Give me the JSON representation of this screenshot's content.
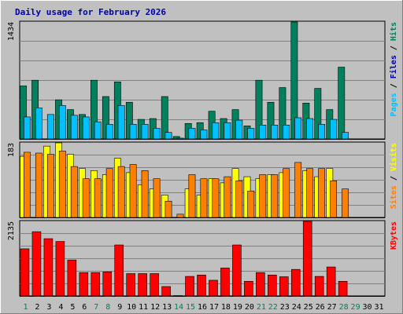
{
  "chart_data": {
    "type": "bar",
    "title": "Daily usage for February 2026",
    "colors": {
      "bg": "#c0c0c0",
      "title": "#0000aa",
      "hits": "#00805c",
      "files": "#00c0ff",
      "pages": "#00c0ff",
      "visits": "#ffff00",
      "sites": "#ff8000",
      "kbytes": "#ff0000",
      "weekend": "#00805c",
      "weekday": "#000080"
    },
    "x": [
      "1",
      "2",
      "3",
      "4",
      "5",
      "6",
      "7",
      "8",
      "9",
      "10",
      "11",
      "12",
      "13",
      "14",
      "15",
      "16",
      "17",
      "18",
      "19",
      "20",
      "21",
      "22",
      "23",
      "24",
      "25",
      "26",
      "27",
      "28",
      "29",
      "30",
      "31"
    ],
    "weekend_days": [
      "1",
      "7",
      "8",
      "14",
      "15",
      "21",
      "22",
      "28",
      "29"
    ],
    "panels": [
      {
        "ylabel_max": "1434",
        "legend": [
          {
            "text": "Hits",
            "color": "#00805c"
          },
          {
            "text": "Files",
            "color": "#0000aa"
          },
          {
            "text": "Pages",
            "color": "#00c0ff"
          }
        ],
        "ylim": [
          0,
          1434
        ],
        "series": [
          {
            "name": "Hits",
            "color": "#00805c",
            "values": [
              650,
              720,
              0,
              480,
              360,
              300,
              720,
              520,
              700,
              450,
              240,
              250,
              520,
              30,
              190,
              200,
              340,
              250,
              360,
              160,
              720,
              450,
              630,
              1434,
              440,
              620,
              360,
              880,
              0,
              0,
              0
            ]
          },
          {
            "name": "Files",
            "color": "#00c0ff",
            "values": [
              270,
              380,
              300,
              410,
              290,
              270,
              210,
              180,
              410,
              180,
              180,
              130,
              80,
              10,
              130,
              110,
              200,
              200,
              230,
              130,
              170,
              170,
              170,
              260,
              250,
              180,
              240,
              80,
              0,
              0,
              0
            ]
          },
          {
            "name": "Pages",
            "color": "#00c0ff",
            "values": [
              0,
              0,
              0,
              0,
              0,
              0,
              0,
              0,
              0,
              0,
              0,
              0,
              0,
              0,
              0,
              0,
              0,
              0,
              0,
              0,
              0,
              0,
              0,
              0,
              0,
              0,
              0,
              0,
              0,
              0,
              0
            ]
          }
        ]
      },
      {
        "ylabel_max": "183",
        "legend": [
          {
            "text": "Visits",
            "color": "#ffff00"
          },
          {
            "text": "Sites",
            "color": "#ff8000"
          }
        ],
        "ylim": [
          0,
          183
        ],
        "series": [
          {
            "name": "Visits",
            "color": "#ffff00",
            "values": [
              150,
              0,
              175,
              183,
              155,
              120,
              115,
              105,
              145,
              110,
              80,
              70,
              55,
              0,
              70,
              55,
              95,
              85,
              120,
              100,
              95,
              105,
              110,
              0,
              115,
              100,
              120,
              0,
              0,
              0,
              0
            ]
          },
          {
            "name": "Sites",
            "color": "#ff8000",
            "values": [
              160,
              158,
              155,
              163,
              125,
              95,
              95,
              120,
              125,
              130,
              115,
              95,
              40,
              8,
              105,
              95,
              95,
              100,
              90,
              65,
              105,
              105,
              120,
              135,
              120,
              120,
              90,
              70,
              0,
              0,
              0
            ]
          }
        ]
      },
      {
        "ylabel_max": "2135",
        "legend": [
          {
            "text": "KBytes",
            "color": "#ff0000"
          }
        ],
        "ylim": [
          0,
          2135
        ],
        "series": [
          {
            "name": "KBytes",
            "color": "#ff0000",
            "values": [
              1350,
              1840,
              1640,
              1560,
              1030,
              670,
              670,
              690,
              1460,
              640,
              640,
              640,
              270,
              10,
              560,
              600,
              450,
              800,
              1460,
              420,
              670,
              600,
              550,
              760,
              2135,
              560,
              830,
              420,
              0,
              0,
              0
            ]
          }
        ]
      }
    ]
  }
}
